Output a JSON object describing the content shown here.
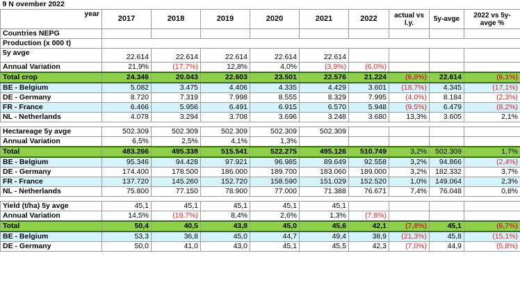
{
  "header": {
    "date": "9 N ovember 2022",
    "year_label": "year",
    "countries_label": "Countries NEPG",
    "years": [
      "2017",
      "2018",
      "2019",
      "2020",
      "2021",
      "2022"
    ],
    "col_actual": "actual vs l.y.",
    "col_5y": "5y-avge",
    "col_pct": "2022 vs 5y-avge %"
  },
  "production": {
    "title": "Production (x 000 t)",
    "subtitle": "5y avge",
    "avg": [
      "22.614",
      "22.614",
      "22.614",
      "22.614",
      "22.614"
    ],
    "annual_label": "Annual Variation",
    "annual": [
      "21,9%",
      "(17,7%)",
      "12,8%",
      "4,0%",
      "(3,9%)",
      "(6,0%)"
    ],
    "total_label": "Total crop",
    "total": [
      "24.346",
      "20.043",
      "22.603",
      "23.501",
      "22.576",
      "21.224",
      "(6,0%)",
      "22.614",
      "(6,1%)"
    ],
    "rows": [
      {
        "label": "BE - Belgium",
        "cells": [
          "5.082",
          "3.475",
          "4.406",
          "4.335",
          "4.429",
          "3.601",
          "(18,7%)",
          "4.345",
          "(17,1%)"
        ]
      },
      {
        "label": "DE - Germany",
        "cells": [
          "8.720",
          "7.319",
          "7.998",
          "8.555",
          "8.329",
          "7.995",
          "(4,0%)",
          "8.184",
          "(2,3%)"
        ]
      },
      {
        "label": "FR - France",
        "cells": [
          "6.466",
          "5.956",
          "6.491",
          "6.915",
          "6.570",
          "5.948",
          "(9,5%)",
          "6.479",
          "(8,2%)"
        ]
      },
      {
        "label": "NL - Netherlands",
        "cells": [
          "4.078",
          "3.294",
          "3.708",
          "3.696",
          "3.248",
          "3.680",
          "13,3%",
          "3.605",
          "2,1%"
        ]
      }
    ]
  },
  "hectare": {
    "title": "Hectareage 5y avge",
    "avg": [
      "502.309",
      "502.309",
      "502.309",
      "502.309",
      "502.309"
    ],
    "annual_label": "Annual Variation",
    "annual": [
      "6,5%",
      "2,5%",
      "4,1%",
      "1,3%"
    ],
    "total_label": "Total",
    "total": [
      "483.266",
      "495.338",
      "515.541",
      "522.275",
      "495.126",
      "510.749",
      "3,2%",
      "502.309",
      "1,7%"
    ],
    "rows": [
      {
        "label": "BE - Belgium",
        "cells": [
          "95.346",
          "94.428",
          "97.921",
          "96.985",
          "89.649",
          "92.558",
          "3,2%",
          "94.866",
          "(2,4%)"
        ]
      },
      {
        "label": "DE - Germany",
        "cells": [
          "174.400",
          "178.500",
          "186.000",
          "189.700",
          "183.060",
          "189.000",
          "3,2%",
          "182.332",
          "3,7%"
        ]
      },
      {
        "label": "FR - France",
        "cells": [
          "137.720",
          "145.260",
          "152.720",
          "158.590",
          "151.029",
          "152.520",
          "1,0%",
          "149.064",
          "2,3%"
        ]
      },
      {
        "label": "NL - Netherlands",
        "cells": [
          "75.800",
          "77.150",
          "78.900",
          "77.000",
          "71.388",
          "76.671",
          "7,4%",
          "76.048",
          "0,8%"
        ]
      }
    ]
  },
  "yield": {
    "title": "Yield (t/ha) 5y avge",
    "avg": [
      "45,1",
      "45,1",
      "45,1",
      "45,1",
      "45,1"
    ],
    "annual_label": "Annual Variation",
    "annual": [
      "14,5%",
      "(19,7%)",
      "8,4%",
      "2,6%",
      "1,3%",
      "(7,8%)"
    ],
    "total_label": "Total",
    "total": [
      "50,4",
      "40,5",
      "43,8",
      "45,0",
      "45,6",
      "42,1",
      "(7,8%)",
      "45,1",
      "(6,7%)"
    ],
    "rows": [
      {
        "label": "BE - Belgium",
        "cells": [
          "53,3",
          "36,8",
          "45,0",
          "44,7",
          "49,4",
          "38,9",
          "(21,3%)",
          "45,8",
          "(15,1%)"
        ]
      },
      {
        "label": "DE - Germany",
        "cells": [
          "50,0",
          "41,0",
          "43,0",
          "45,1",
          "45,5",
          "42,3",
          "(7,0%)",
          "44,9",
          "(5,8%)"
        ]
      }
    ]
  }
}
